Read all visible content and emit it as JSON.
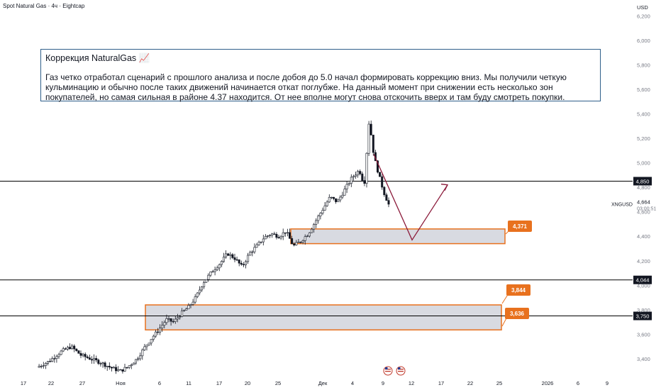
{
  "header": {
    "symbol_title": "Spot Natural Gas · 4ч · Eightcap"
  },
  "note": {
    "title": "Коррекция NaturalGas 📈",
    "body": "Газ четко отработал сценарий с прошлого анализа и после добоя до 5.0 начал формировать коррекцию вниз. Мы получили четкую кульминацию и обычно после таких движений начинается откат поглубже. На данный момент при снижении есть несколько зон покупателей, но самая сильная в районе 4.37 находится. От нее вполне могут снова отскочить вверх и там буду смотреть покупки."
  },
  "colors": {
    "up": "#131722",
    "down": "#131722",
    "zone_fill": "#d1d4dc",
    "zone_border": "#e8711e",
    "label_orange": "#e8711e",
    "path_arrow": "#8b1a3a",
    "hline": "#000000",
    "note_border": "#2f5f8a"
  },
  "price_axis": {
    "currency": "USD",
    "ticks": [
      "3,400",
      "3,600",
      "3,800",
      "4,000",
      "4,200",
      "4,400",
      "4,600",
      "4,800",
      "5,000",
      "5,200",
      "5,400",
      "5,600",
      "5,800",
      "6,000",
      "6,200"
    ],
    "tick_values": [
      3.4,
      3.6,
      3.8,
      4.0,
      4.2,
      4.4,
      4.6,
      4.8,
      5.0,
      5.2,
      5.4,
      5.6,
      5.8,
      6.0,
      6.2
    ],
    "range": [
      3.29,
      6.3
    ],
    "current_symbol": "XNGUSD",
    "current_price": "4,664",
    "countdown": "03:00:51"
  },
  "time_axis": {
    "labels": [
      "17",
      "22",
      "27",
      "Ноя",
      "6",
      "11",
      "17",
      "20",
      "25",
      "Дек",
      "4",
      "9",
      "12",
      "17",
      "22",
      "25",
      "2026",
      "6",
      "9"
    ]
  },
  "chart_data": {
    "type": "candlestick",
    "symbol": "XNGUSD",
    "timeframe": "4h",
    "horizontal_levels": [
      {
        "label": "4,850",
        "value": 4.85
      },
      {
        "label": "4,044",
        "value": 4.044
      },
      {
        "label": "3,750",
        "value": 3.75
      }
    ],
    "zones": [
      {
        "name": "zone-upper",
        "top": 4.46,
        "bottom": 4.34,
        "label": "4,371"
      },
      {
        "name": "zone-lower",
        "top": 3.84,
        "bottom": 3.636,
        "top_label": "3,844",
        "bottom_label": "3,636"
      }
    ],
    "projection_path": [
      {
        "step": 0,
        "value": 5.07
      },
      {
        "step": 1,
        "value": 4.37
      },
      {
        "step": 2,
        "value": 4.82
      }
    ],
    "price_path": [
      {
        "t": 0,
        "v": 3.33
      },
      {
        "t": 5,
        "v": 3.38
      },
      {
        "t": 10,
        "v": 3.46
      },
      {
        "t": 14,
        "v": 3.5
      },
      {
        "t": 18,
        "v": 3.43
      },
      {
        "t": 22,
        "v": 3.4
      },
      {
        "t": 26,
        "v": 3.37
      },
      {
        "t": 30,
        "v": 3.33
      },
      {
        "t": 34,
        "v": 3.3
      },
      {
        "t": 37,
        "v": 3.33
      },
      {
        "t": 41,
        "v": 3.4
      },
      {
        "t": 44,
        "v": 3.49
      },
      {
        "t": 47,
        "v": 3.57
      },
      {
        "t": 50,
        "v": 3.64
      },
      {
        "t": 53,
        "v": 3.72
      },
      {
        "t": 56,
        "v": 3.7
      },
      {
        "t": 59,
        "v": 3.77
      },
      {
        "t": 62,
        "v": 3.82
      },
      {
        "t": 65,
        "v": 3.9
      },
      {
        "t": 68,
        "v": 4.02
      },
      {
        "t": 72,
        "v": 4.12
      },
      {
        "t": 75,
        "v": 4.18
      },
      {
        "t": 78,
        "v": 4.26
      },
      {
        "t": 81,
        "v": 4.22
      },
      {
        "t": 84,
        "v": 4.15
      },
      {
        "t": 87,
        "v": 4.26
      },
      {
        "t": 90,
        "v": 4.32
      },
      {
        "t": 93,
        "v": 4.39
      },
      {
        "t": 96,
        "v": 4.42
      },
      {
        "t": 99,
        "v": 4.4
      },
      {
        "t": 102,
        "v": 4.44
      },
      {
        "t": 105,
        "v": 4.32
      },
      {
        "t": 108,
        "v": 4.36
      },
      {
        "t": 111,
        "v": 4.42
      },
      {
        "t": 114,
        "v": 4.52
      },
      {
        "t": 117,
        "v": 4.62
      },
      {
        "t": 120,
        "v": 4.72
      },
      {
        "t": 123,
        "v": 4.68
      },
      {
        "t": 126,
        "v": 4.78
      },
      {
        "t": 129,
        "v": 4.88
      },
      {
        "t": 132,
        "v": 4.94
      },
      {
        "t": 134,
        "v": 4.82
      },
      {
        "t": 136,
        "v": 5.35
      },
      {
        "t": 138,
        "v": 5.05
      },
      {
        "t": 140,
        "v": 4.9
      },
      {
        "t": 142,
        "v": 4.76
      },
      {
        "t": 144,
        "v": 4.66
      }
    ]
  }
}
